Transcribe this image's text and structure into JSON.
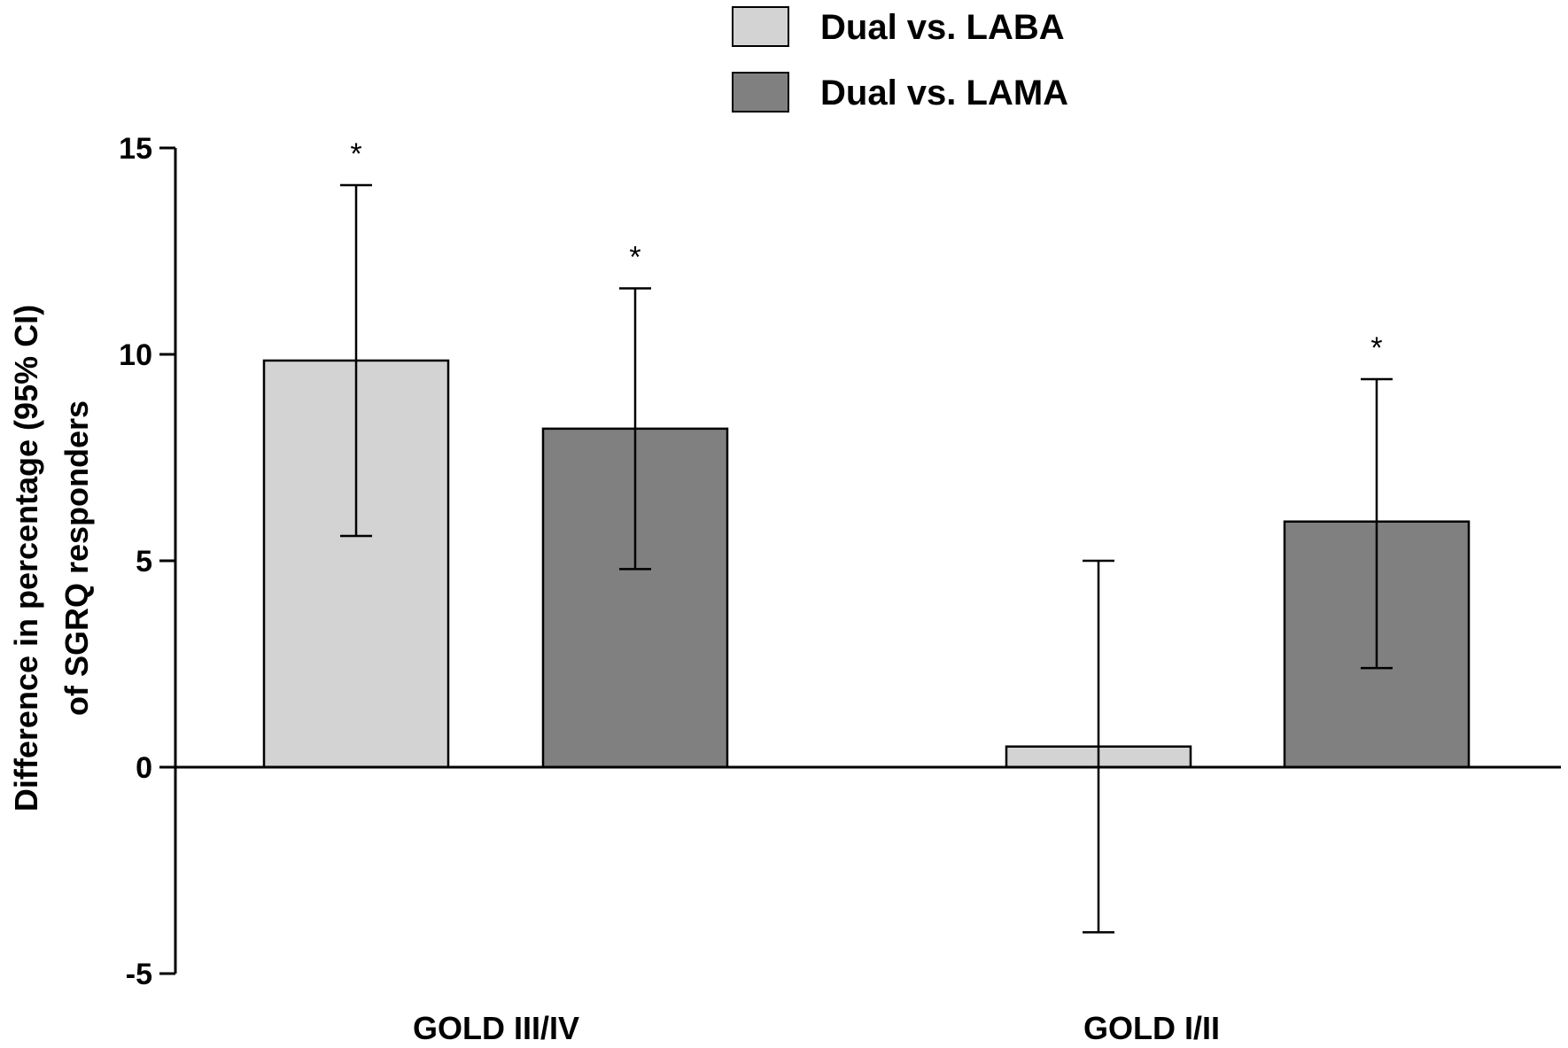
{
  "chart_data": {
    "type": "bar",
    "categories": [
      "GOLD III/IV",
      "GOLD I/II"
    ],
    "ylabel_lines": [
      "Difference in percentage (95% CI)",
      "of SGRQ responders"
    ],
    "ylim": [
      -5,
      15
    ],
    "yticks": [
      "-5",
      "0",
      "5",
      "10",
      "15"
    ],
    "yticks_values": [
      -5,
      0,
      5,
      10,
      15
    ],
    "legend_position": "top-center",
    "grid": false,
    "series": [
      {
        "name": "Dual vs. LABA",
        "color": "#d3d3d3",
        "values": [
          9.85,
          0.5
        ],
        "ci_low": [
          5.6,
          -4.0
        ],
        "ci_high": [
          14.1,
          5.0
        ],
        "significance": [
          "*",
          ""
        ]
      },
      {
        "name": "Dual vs. LAMA",
        "color": "#808080",
        "values": [
          8.2,
          5.95
        ],
        "ci_low": [
          4.8,
          2.4
        ],
        "ci_high": [
          11.6,
          9.4
        ],
        "significance": [
          "*",
          "*"
        ]
      }
    ]
  }
}
